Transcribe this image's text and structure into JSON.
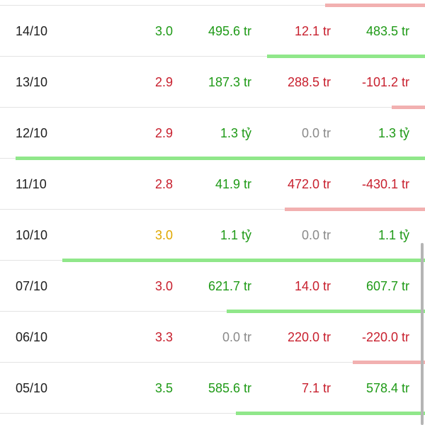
{
  "colors": {
    "up": "#1f9a17",
    "down": "#c8202e",
    "neutral": "#8a8a8a",
    "reference": "#e0a800",
    "bar_positive": "#90e78a",
    "bar_negative": "#f2b0b0"
  },
  "top_bar": {
    "type": "negative",
    "fraction": 0.235
  },
  "rows": [
    {
      "date": "14/10",
      "price": "3.0",
      "price_color": "up",
      "buy": "495.6 tr",
      "buy_color": "up",
      "sell": "12.1 tr",
      "sell_color": "down",
      "net": "483.5 tr",
      "net_color": "up",
      "bar": {
        "type": "positive",
        "fraction": 0.372
      }
    },
    {
      "date": "13/10",
      "price": "2.9",
      "price_color": "down",
      "buy": "187.3 tr",
      "buy_color": "up",
      "sell": "288.5 tr",
      "sell_color": "down",
      "net": "-101.2 tr",
      "net_color": "down",
      "bar": {
        "type": "negative",
        "fraction": 0.078
      }
    },
    {
      "date": "12/10",
      "price": "2.9",
      "price_color": "down",
      "buy": "1.3 tỷ",
      "buy_color": "up",
      "sell": "0.0 tr",
      "sell_color": "neutral",
      "net": "1.3 tỷ",
      "net_color": "up",
      "bar": {
        "type": "positive",
        "fraction": 0.963
      }
    },
    {
      "date": "11/10",
      "price": "2.8",
      "price_color": "down",
      "buy": "41.9 tr",
      "buy_color": "up",
      "sell": "472.0 tr",
      "sell_color": "down",
      "net": "-430.1 tr",
      "net_color": "down",
      "bar": {
        "type": "negative",
        "fraction": 0.33
      }
    },
    {
      "date": "10/10",
      "price": "3.0",
      "price_color": "reference",
      "buy": "1.1 tỷ",
      "buy_color": "up",
      "sell": "0.0 tr",
      "sell_color": "neutral",
      "net": "1.1 tỷ",
      "net_color": "up",
      "bar": {
        "type": "positive",
        "fraction": 0.853
      }
    },
    {
      "date": "07/10",
      "price": "3.0",
      "price_color": "down",
      "buy": "621.7 tr",
      "buy_color": "up",
      "sell": "14.0 tr",
      "sell_color": "down",
      "net": "607.7 tr",
      "net_color": "up",
      "bar": {
        "type": "positive",
        "fraction": 0.467
      }
    },
    {
      "date": "06/10",
      "price": "3.3",
      "price_color": "down",
      "buy": "0.0 tr",
      "buy_color": "neutral",
      "sell": "220.0 tr",
      "sell_color": "down",
      "net": "-220.0 tr",
      "net_color": "down",
      "bar": {
        "type": "negative",
        "fraction": 0.17
      }
    },
    {
      "date": "05/10",
      "price": "3.5",
      "price_color": "up",
      "buy": "585.6 tr",
      "buy_color": "up",
      "sell": "7.1 tr",
      "sell_color": "down",
      "net": "578.4 tr",
      "net_color": "up",
      "bar": {
        "type": "positive",
        "fraction": 0.445
      }
    }
  ]
}
